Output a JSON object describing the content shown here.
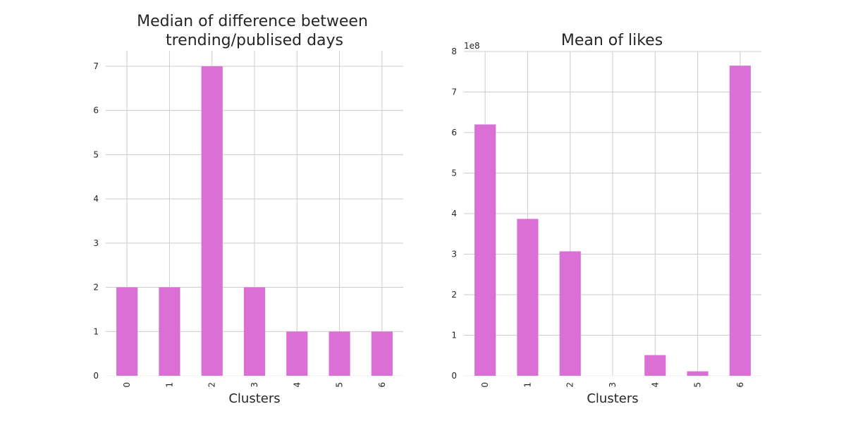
{
  "colors": {
    "bar": "#da70d6",
    "grid": "#cccccc",
    "text": "#262626"
  },
  "chart_data": [
    {
      "type": "bar",
      "title_lines": [
        "Median of difference between",
        "trending/publised days"
      ],
      "xlabel": "Clusters",
      "ylabel": "",
      "categories": [
        "0",
        "1",
        "2",
        "3",
        "4",
        "5",
        "6"
      ],
      "values": [
        2,
        2,
        7,
        2,
        1,
        1,
        1
      ],
      "ylim": [
        0,
        7.35
      ],
      "yticks": [
        0,
        1,
        2,
        3,
        4,
        5,
        6,
        7
      ],
      "ytick_labels": [
        "0",
        "1",
        "2",
        "3",
        "4",
        "5",
        "6",
        "7"
      ],
      "offset_text": "",
      "grid": true
    },
    {
      "type": "bar",
      "title_lines": [
        "Mean of likes"
      ],
      "xlabel": "Clusters",
      "ylabel": "",
      "categories": [
        "0",
        "1",
        "2",
        "3",
        "4",
        "5",
        "6"
      ],
      "values": [
        620000000,
        387000000,
        307000000,
        0,
        51000000,
        11000000,
        765000000
      ],
      "ylim": [
        0,
        800000000
      ],
      "yticks": [
        0,
        100000000,
        200000000,
        300000000,
        400000000,
        500000000,
        600000000,
        700000000,
        800000000
      ],
      "ytick_labels": [
        "0",
        "1",
        "2",
        "3",
        "4",
        "5",
        "6",
        "7",
        "8"
      ],
      "offset_text": "1e8",
      "grid": true
    }
  ]
}
